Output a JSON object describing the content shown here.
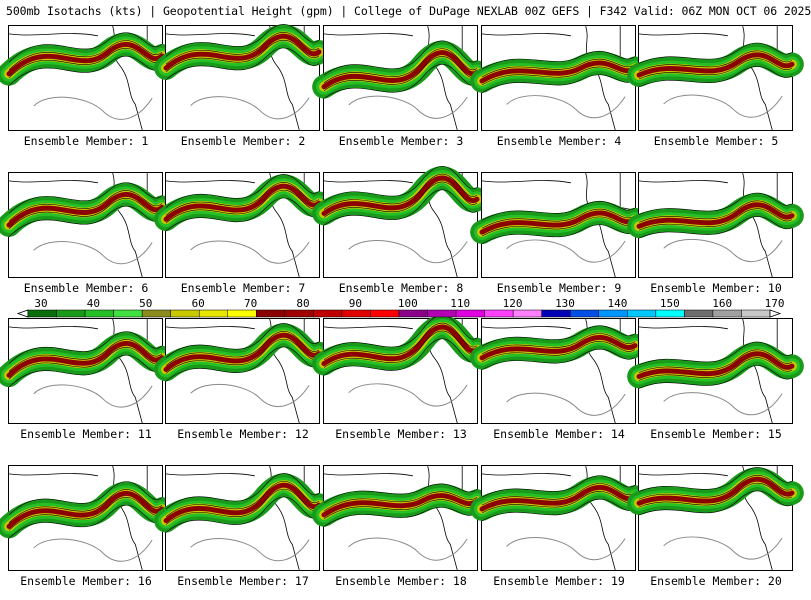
{
  "title": "500mb Isotachs (kts) | Geopotential Height (gpm) | College of DuPage NEXLAB   00Z GEFS | F342 Valid: 06Z MON OCT 06 2025",
  "members": [
    {
      "label": "Ensemble Member: 1"
    },
    {
      "label": "Ensemble Member: 2"
    },
    {
      "label": "Ensemble Member: 3"
    },
    {
      "label": "Ensemble Member: 4"
    },
    {
      "label": "Ensemble Member: 5"
    },
    {
      "label": "Ensemble Member: 6"
    },
    {
      "label": "Ensemble Member: 7"
    },
    {
      "label": "Ensemble Member: 8"
    },
    {
      "label": "Ensemble Member: 9"
    },
    {
      "label": "Ensemble Member: 10"
    },
    {
      "label": "Ensemble Member: 11"
    },
    {
      "label": "Ensemble Member: 12"
    },
    {
      "label": "Ensemble Member: 13"
    },
    {
      "label": "Ensemble Member: 14"
    },
    {
      "label": "Ensemble Member: 15"
    },
    {
      "label": "Ensemble Member: 16"
    },
    {
      "label": "Ensemble Member: 17"
    },
    {
      "label": "Ensemble Member: 18"
    },
    {
      "label": "Ensemble Member: 19"
    },
    {
      "label": "Ensemble Member: 20"
    }
  ],
  "colorbar": {
    "tick_labels": [
      "30",
      "40",
      "50",
      "60",
      "70",
      "80",
      "90",
      "100",
      "110",
      "120",
      "130",
      "140",
      "150",
      "160",
      "170"
    ],
    "colors": [
      "#0a6e0a",
      "#1a9a1a",
      "#25c025",
      "#40e040",
      "#8c8c1e",
      "#c8c800",
      "#e6e600",
      "#ffff00",
      "#8b0000",
      "#a00000",
      "#c00000",
      "#e00000",
      "#ff0000",
      "#8b008b",
      "#b400b4",
      "#e000e0",
      "#ff40ff",
      "#ff80ff",
      "#0000b4",
      "#0050e6",
      "#0096ff",
      "#00c8ff",
      "#00ffff",
      "#6e6e6e",
      "#a0a0a0",
      "#c8c8c8"
    ]
  }
}
